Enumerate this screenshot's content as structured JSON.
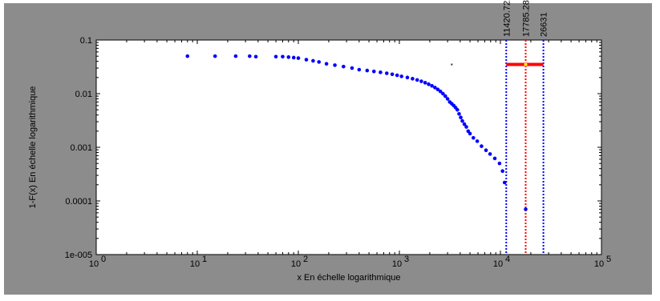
{
  "chart_data": {
    "type": "scatter",
    "xlabel": "x En échelle logarithmique",
    "ylabel": "1-F(x) En échelle logarithmique",
    "x_scale": "log",
    "y_scale": "log",
    "xlim": [
      1,
      100000
    ],
    "ylim": [
      1e-05,
      0.1
    ],
    "x_tick_labels": [
      {
        "value": 1,
        "base": "10",
        "exp": "0"
      },
      {
        "value": 10,
        "base": "10",
        "exp": "1"
      },
      {
        "value": 100,
        "base": "10",
        "exp": "2"
      },
      {
        "value": 1000,
        "base": "10",
        "exp": "3"
      },
      {
        "value": 10000,
        "base": "10",
        "exp": "4"
      },
      {
        "value": 100000,
        "base": "10",
        "exp": "5"
      }
    ],
    "y_tick_labels": [
      {
        "value": 0.1,
        "text": "0.1"
      },
      {
        "value": 0.01,
        "text": "0.01"
      },
      {
        "value": 0.001,
        "text": "0.001"
      },
      {
        "value": 0.0001,
        "text": "0.0001"
      },
      {
        "value": 1e-05,
        "text": "1e-005"
      }
    ],
    "grid": false,
    "points": [
      [
        8,
        0.05
      ],
      [
        15,
        0.05
      ],
      [
        24,
        0.05
      ],
      [
        33,
        0.05
      ],
      [
        38,
        0.049
      ],
      [
        60,
        0.049
      ],
      [
        70,
        0.049
      ],
      [
        80,
        0.048
      ],
      [
        90,
        0.047
      ],
      [
        100,
        0.046
      ],
      [
        120,
        0.043
      ],
      [
        140,
        0.041
      ],
      [
        160,
        0.039
      ],
      [
        190,
        0.036
      ],
      [
        230,
        0.034
      ],
      [
        280,
        0.032
      ],
      [
        340,
        0.03
      ],
      [
        400,
        0.028
      ],
      [
        480,
        0.027
      ],
      [
        560,
        0.026
      ],
      [
        650,
        0.025
      ],
      [
        750,
        0.024
      ],
      [
        850,
        0.023
      ],
      [
        950,
        0.022
      ],
      [
        1050,
        0.021
      ],
      [
        1200,
        0.02
      ],
      [
        1350,
        0.019
      ],
      [
        1500,
        0.018
      ],
      [
        1650,
        0.017
      ],
      [
        1800,
        0.016
      ],
      [
        1950,
        0.015
      ],
      [
        2100,
        0.014
      ],
      [
        2250,
        0.013
      ],
      [
        2400,
        0.012
      ],
      [
        2550,
        0.011
      ],
      [
        2700,
        0.01
      ],
      [
        2850,
        0.009
      ],
      [
        3000,
        0.008
      ],
      [
        3150,
        0.007
      ],
      [
        3300,
        0.0065
      ],
      [
        3450,
        0.006
      ],
      [
        3600,
        0.0055
      ],
      [
        3750,
        0.005
      ],
      [
        3900,
        0.0042
      ],
      [
        4050,
        0.0036
      ],
      [
        4200,
        0.0031
      ],
      [
        4400,
        0.0027
      ],
      [
        4600,
        0.0024
      ],
      [
        4800,
        0.002
      ],
      [
        5000,
        0.0018
      ],
      [
        5400,
        0.0015
      ],
      [
        5900,
        0.0013
      ],
      [
        6500,
        0.00105
      ],
      [
        7200,
        0.00088
      ],
      [
        7900,
        0.00075
      ],
      [
        8800,
        0.00062
      ],
      [
        9800,
        0.0005
      ],
      [
        10500,
        0.00036
      ],
      [
        11000,
        0.00022
      ],
      [
        17785.284,
        7e-05
      ]
    ],
    "isolated_marker": [
      3300,
      0.035
    ],
    "point_color": "#0000ff",
    "vertical_lines": [
      {
        "x": 11420.722,
        "label": "11420.722",
        "color": "#0000ff"
      },
      {
        "x": 17785.284,
        "label": "17785.284",
        "color": "#ff0000"
      },
      {
        "x": 26631,
        "label": "26631",
        "color": "#0000ff"
      }
    ],
    "interval_bar": {
      "x_from": 11420.722,
      "x_to": 26631,
      "y": 0.035,
      "color": "#ff0000"
    },
    "bar_center_marker": {
      "x": 17785.284,
      "y": 0.035,
      "color": "#ffff00"
    },
    "colors": {
      "frame_bg": "#8c8c8c",
      "plot_bg": "#ffffff"
    }
  }
}
